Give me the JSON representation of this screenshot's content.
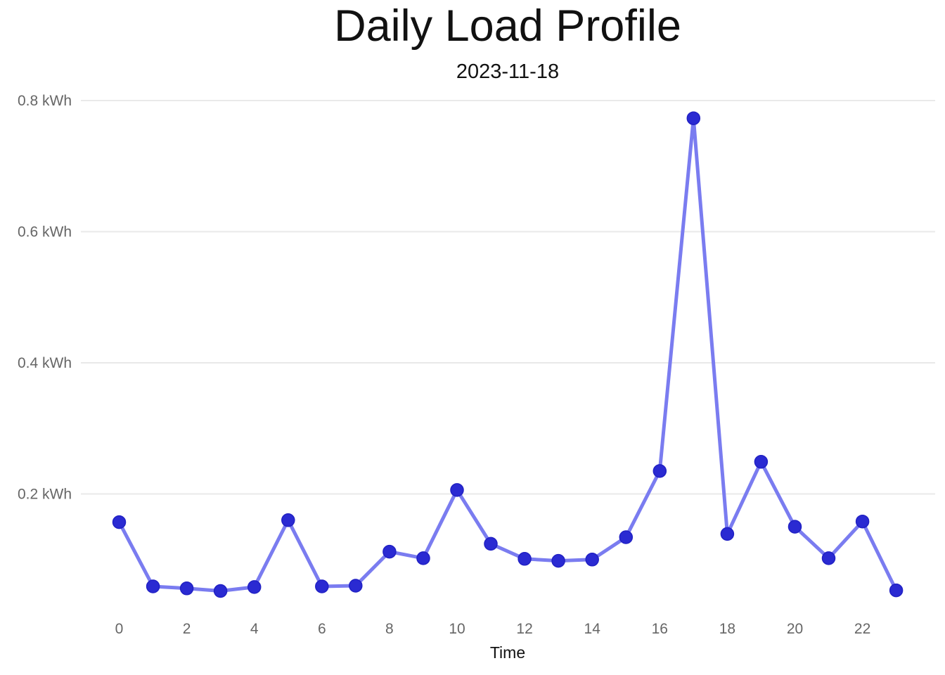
{
  "chart_data": {
    "type": "line",
    "title": "Daily Load Profile",
    "subtitle": "2023-11-18",
    "xlabel": "Time",
    "ylabel": "",
    "y_unit": "kWh",
    "x": [
      0,
      1,
      2,
      3,
      4,
      5,
      6,
      7,
      8,
      9,
      10,
      11,
      12,
      13,
      14,
      15,
      16,
      17,
      18,
      19,
      20,
      21,
      22,
      23
    ],
    "values": [
      0.157,
      0.059,
      0.056,
      0.052,
      0.058,
      0.16,
      0.059,
      0.06,
      0.112,
      0.102,
      0.206,
      0.124,
      0.101,
      0.098,
      0.1,
      0.134,
      0.235,
      0.773,
      0.139,
      0.249,
      0.15,
      0.102,
      0.158,
      0.053
    ],
    "x_tick_labels": [
      "0",
      "2",
      "4",
      "6",
      "8",
      "10",
      "12",
      "14",
      "16",
      "18",
      "20",
      "22"
    ],
    "x_tick_values": [
      0,
      2,
      4,
      6,
      8,
      10,
      12,
      14,
      16,
      18,
      20,
      22
    ],
    "y_ticks": [
      {
        "value": 0.2,
        "label": "0.2 kWh"
      },
      {
        "value": 0.4,
        "label": "0.4 kWh"
      },
      {
        "value": 0.6,
        "label": "0.6 kWh"
      },
      {
        "value": 0.8,
        "label": "0.8 kWh"
      }
    ],
    "ylim": [
      0,
      0.84
    ],
    "grid": true,
    "legend": false,
    "colors": {
      "line": "#7a7cf0",
      "marker_fill": "#2a2ad2",
      "marker_stroke": "#2121c4",
      "gridline": "#e9e9e9",
      "tick_text": "#666666",
      "title_text": "#111111",
      "background": "#ffffff"
    }
  }
}
